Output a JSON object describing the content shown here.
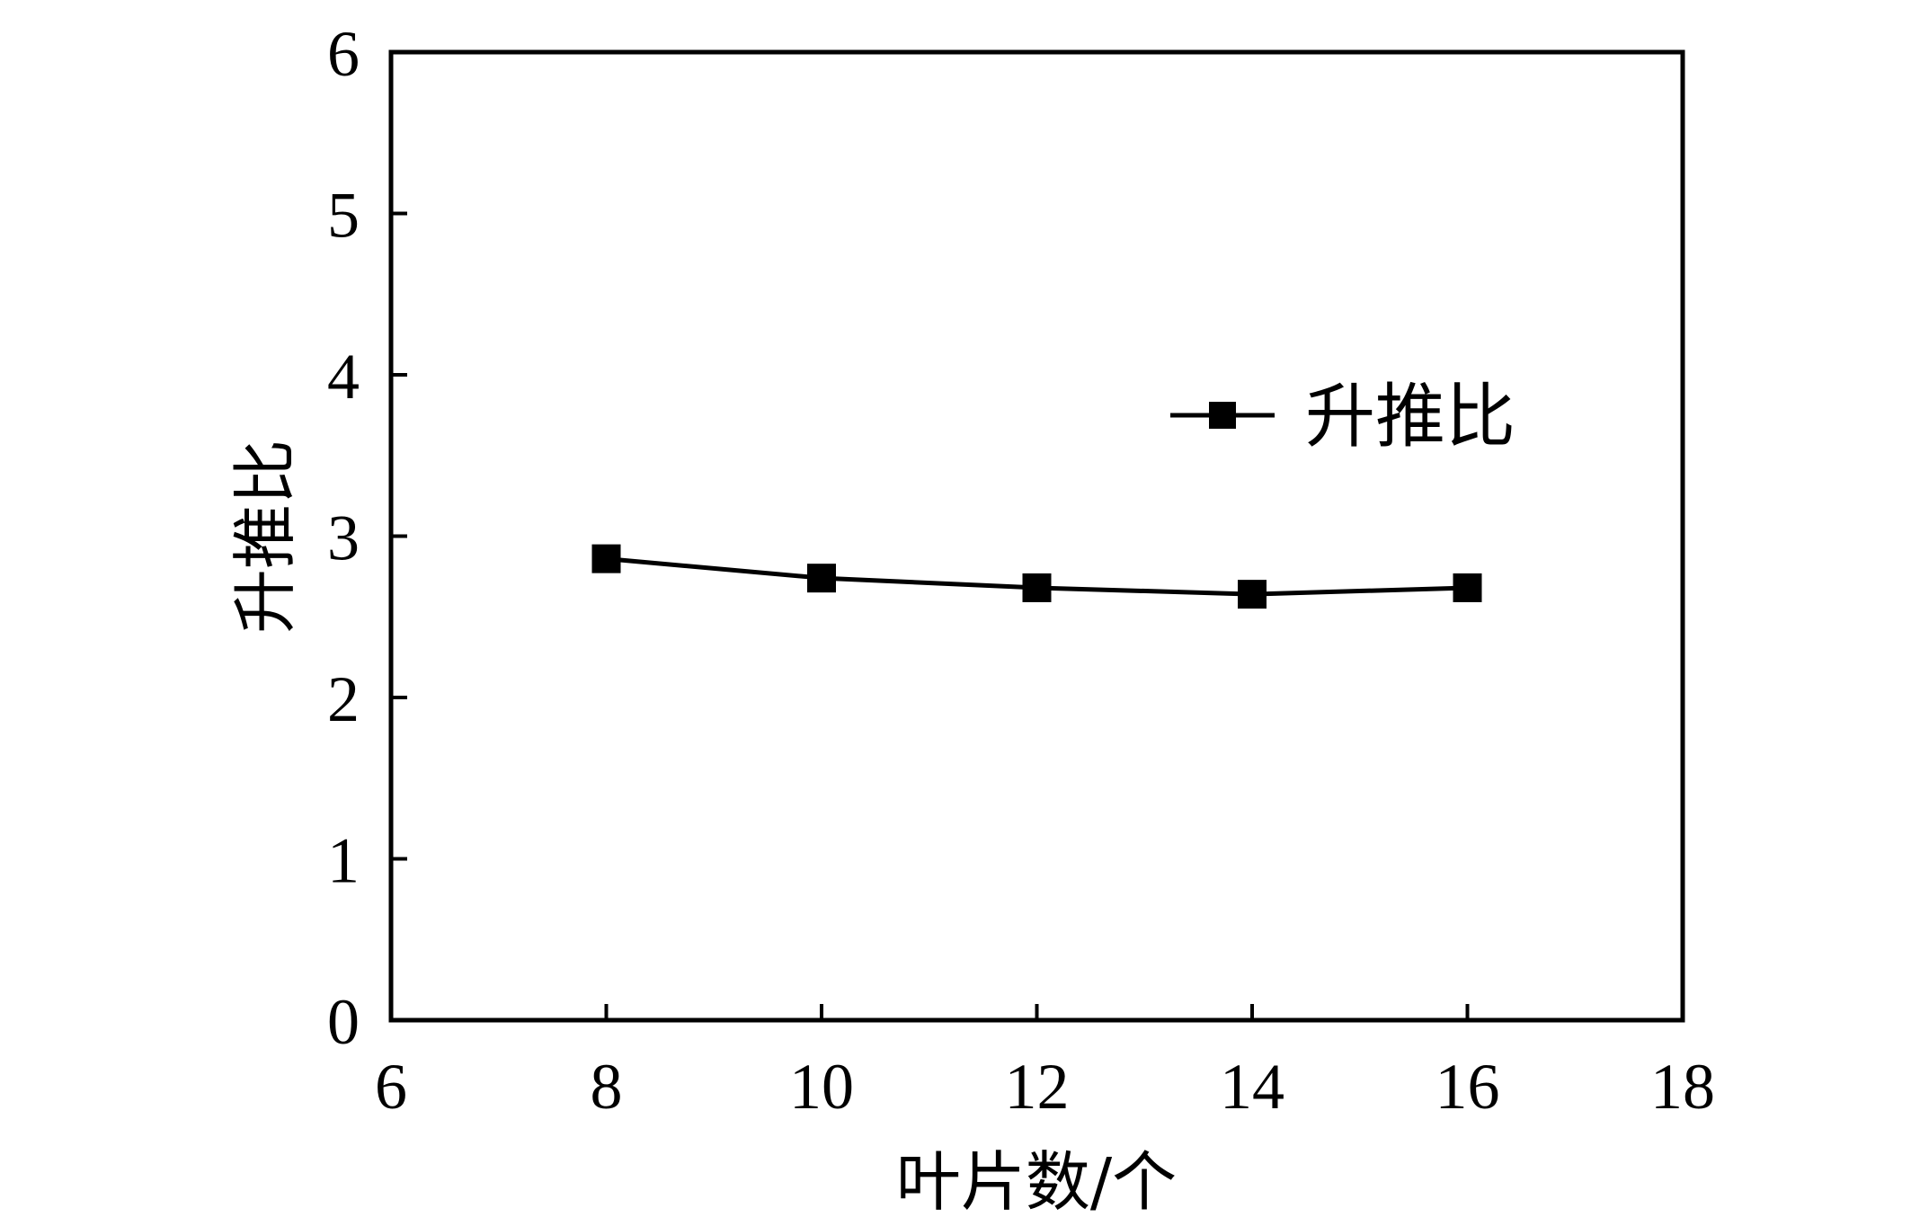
{
  "chart_data": {
    "type": "line",
    "xlabel": "叶片数/个",
    "ylabel": "升推比",
    "xlim": [
      6,
      18
    ],
    "ylim": [
      0,
      6
    ],
    "xticks": [
      6,
      8,
      10,
      12,
      14,
      16,
      18
    ],
    "yticks": [
      0,
      1,
      2,
      3,
      4,
      5,
      6
    ],
    "grid": false,
    "legend_position": "upper-right",
    "series": [
      {
        "name": "升推比",
        "marker": "square",
        "color": "#000000",
        "x": [
          8,
          10,
          12,
          14,
          16
        ],
        "y": [
          2.86,
          2.74,
          2.68,
          2.64,
          2.68
        ]
      }
    ]
  }
}
